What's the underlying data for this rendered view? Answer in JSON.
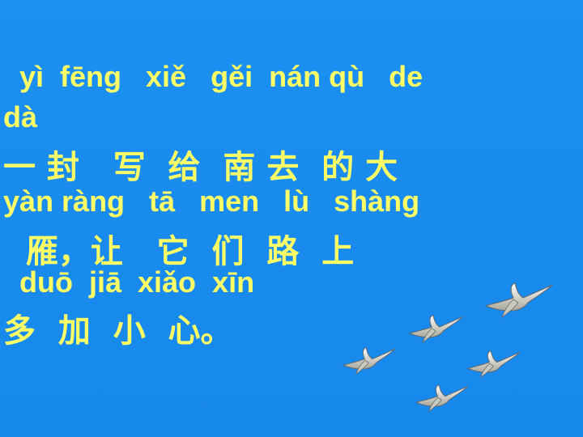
{
  "lines": {
    "pinyin_1": "  yì  fēng   xiě   gěi  nán qù   de",
    "pinyin_2": "dà",
    "hanzi_1": "一 封   写  给  南 去  的 大",
    "pinyin_3": "yàn ràng   tā   men   lù   shàng",
    "hanzi_2": "  雁，让   它  们  路  上",
    "pinyin_4": "  duō  jiā  xiǎo  xīn",
    "hanzi_3": "多  加  小  心。"
  },
  "colors": {
    "background": "#1a8cf0",
    "text": "#ffff66",
    "goose_body": "#d8d8d0"
  },
  "decorations": {
    "flock_icon": "flying-geese-icon",
    "goose_count": 5
  }
}
